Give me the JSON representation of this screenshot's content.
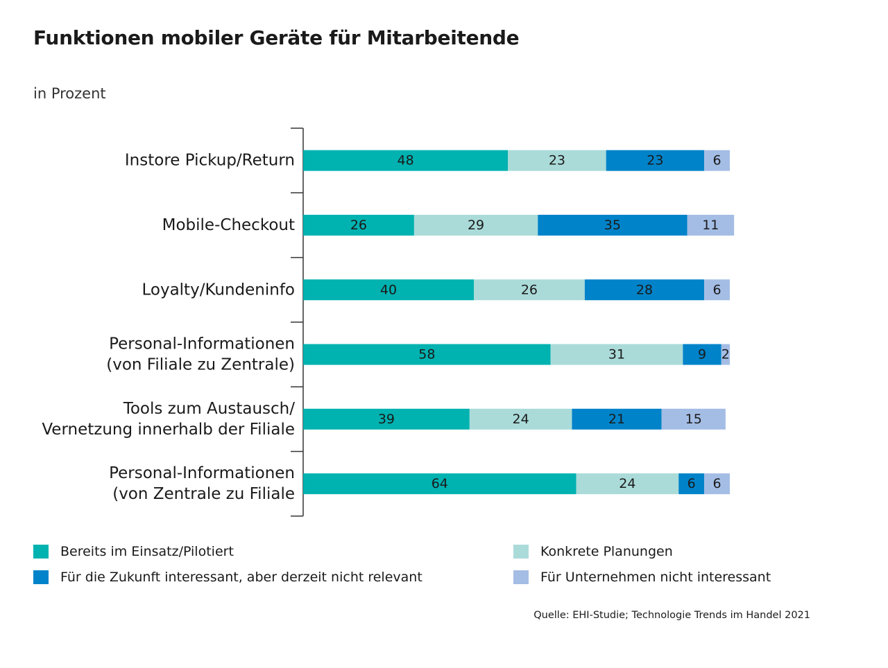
{
  "title": "Funktionen mobiler Geräte für Mitarbeitende",
  "subtitle": "in Prozent",
  "source": "Quelle: EHI-Studie; Technologie Trends im Handel 2021",
  "colors": {
    "einsatz": "#00b2b0",
    "planung": "#aadbd9",
    "zukunft": "#0083c9",
    "nicht": "#a4bde5"
  },
  "chart_data": {
    "type": "bar",
    "orientation": "horizontal",
    "stacked": true,
    "categories": [
      [
        "Instore Pickup/Return"
      ],
      [
        "Mobile-Checkout"
      ],
      [
        "Loyalty/Kundeninfo"
      ],
      [
        "Personal-Informationen",
        "(von Filiale zu Zentrale)"
      ],
      [
        "Tools zum Austausch/",
        "Vernetzung innerhalb der Filiale"
      ],
      [
        "Personal-Informationen",
        "(von Zentrale zu Filiale"
      ]
    ],
    "series": [
      {
        "name": "Bereits im Einsatz/Pilotiert",
        "color_key": "einsatz",
        "values": [
          48,
          26,
          40,
          58,
          39,
          64
        ]
      },
      {
        "name": "Konkrete Planungen",
        "color_key": "planung",
        "values": [
          23,
          29,
          26,
          31,
          24,
          24
        ]
      },
      {
        "name": "Für die Zukunft interessant, aber derzeit nicht relevant",
        "color_key": "zukunft",
        "values": [
          23,
          35,
          28,
          9,
          21,
          6
        ]
      },
      {
        "name": "Für Unternehmen nicht interessant",
        "color_key": "nicht",
        "values": [
          6,
          11,
          6,
          2,
          15,
          6
        ]
      }
    ],
    "xlim": [
      0,
      100
    ],
    "grid": false,
    "legend": "bottom"
  }
}
